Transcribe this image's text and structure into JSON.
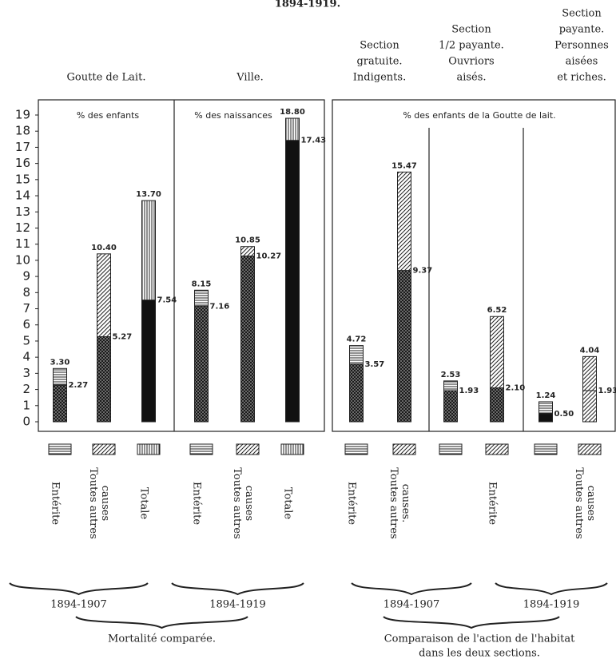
{
  "chart_data": {
    "type": "bar",
    "title": "1894-1919.",
    "ylim": [
      0,
      19
    ],
    "yticks": [
      0,
      1,
      2,
      3,
      4,
      5,
      6,
      7,
      8,
      9,
      10,
      11,
      12,
      13,
      14,
      15,
      16,
      17,
      18,
      19
    ],
    "sections": [
      {
        "header": [
          "Goutte de Lait."
        ],
        "note": "% des enfants",
        "bars": [
          {
            "name": [
              "Entérite"
            ],
            "values": [
              3.3,
              2.27
            ],
            "value_labels": [
              "3.30",
              "2.27"
            ],
            "patterns": [
              "hlines",
              "cross"
            ]
          },
          {
            "name": [
              "Toutes autres",
              "causes"
            ],
            "values": [
              10.4,
              5.27
            ],
            "value_labels": [
              "10.40",
              "5.27"
            ],
            "patterns": [
              "diag",
              "cross"
            ]
          },
          {
            "name": [
              "Totale"
            ],
            "values": [
              13.7,
              7.54
            ],
            "value_labels": [
              "13.70",
              "7.54"
            ],
            "patterns": [
              "vlines",
              "dark"
            ]
          }
        ]
      },
      {
        "header": [
          "Ville."
        ],
        "note": "% des naissances",
        "bars": [
          {
            "name": [
              "Entérite"
            ],
            "values": [
              8.15,
              7.16
            ],
            "value_labels": [
              "8.15",
              "7.16"
            ],
            "patterns": [
              "hlines",
              "cross"
            ]
          },
          {
            "name": [
              "Toutes autres",
              "causes"
            ],
            "values": [
              10.85,
              10.27
            ],
            "value_labels": [
              "10.85",
              "10.27"
            ],
            "patterns": [
              "diag",
              "cross"
            ]
          },
          {
            "name": [
              "Totale"
            ],
            "values": [
              18.8,
              17.43
            ],
            "value_labels": [
              "18.80",
              "17.43"
            ],
            "patterns": [
              "vlines",
              "dark"
            ]
          }
        ]
      },
      {
        "header": [
          "Section",
          "gratuite.",
          "Indigents."
        ],
        "note": "% des enfants de la Goutte de lait.",
        "bars": [
          {
            "name": [
              "Entérite"
            ],
            "values": [
              4.72,
              3.57
            ],
            "value_labels": [
              "4.72",
              "3.57"
            ],
            "patterns": [
              "hlines",
              "cross"
            ]
          },
          {
            "name": [
              "Toutes autres",
              "causes."
            ],
            "values": [
              15.47,
              9.37
            ],
            "value_labels": [
              "15.47",
              "9.37"
            ],
            "patterns": [
              "diag",
              "cross"
            ]
          }
        ]
      },
      {
        "header": [
          "Section",
          "1/2 payante.",
          "Ouvriors",
          "aisés."
        ],
        "bars": [
          {
            "values": [
              2.53,
              1.93
            ],
            "value_labels": [
              "2.53",
              "1.93"
            ],
            "patterns": [
              "hlines",
              "cross"
            ]
          },
          {
            "name": [
              "Entérite"
            ],
            "values": [
              6.52,
              2.1
            ],
            "value_labels": [
              "6.52",
              "2.10"
            ],
            "patterns": [
              "diag",
              "cross"
            ]
          }
        ]
      },
      {
        "header": [
          "Section",
          "payante.",
          "Personnes",
          "aisées",
          "et riches."
        ],
        "bars": [
          {
            "values": [
              1.24,
              0.5
            ],
            "value_labels": [
              "1.24",
              "0.50"
            ],
            "patterns": [
              "hlines",
              "dark"
            ]
          },
          {
            "name": [
              "Toutes autres",
              "causes"
            ],
            "values": [
              4.04,
              1.93
            ],
            "value_labels": [
              "4.04",
              "1.93"
            ],
            "patterns": [
              "diag",
              "diag"
            ]
          }
        ]
      }
    ],
    "periods": [
      "1894-1907",
      "1894-1919",
      "1894-1907",
      "1894-1919"
    ],
    "groups": [
      [
        "Mortalité comparée."
      ],
      [
        "Comparaison de l'action de l'habitat",
        "dans les deux sections."
      ]
    ]
  }
}
